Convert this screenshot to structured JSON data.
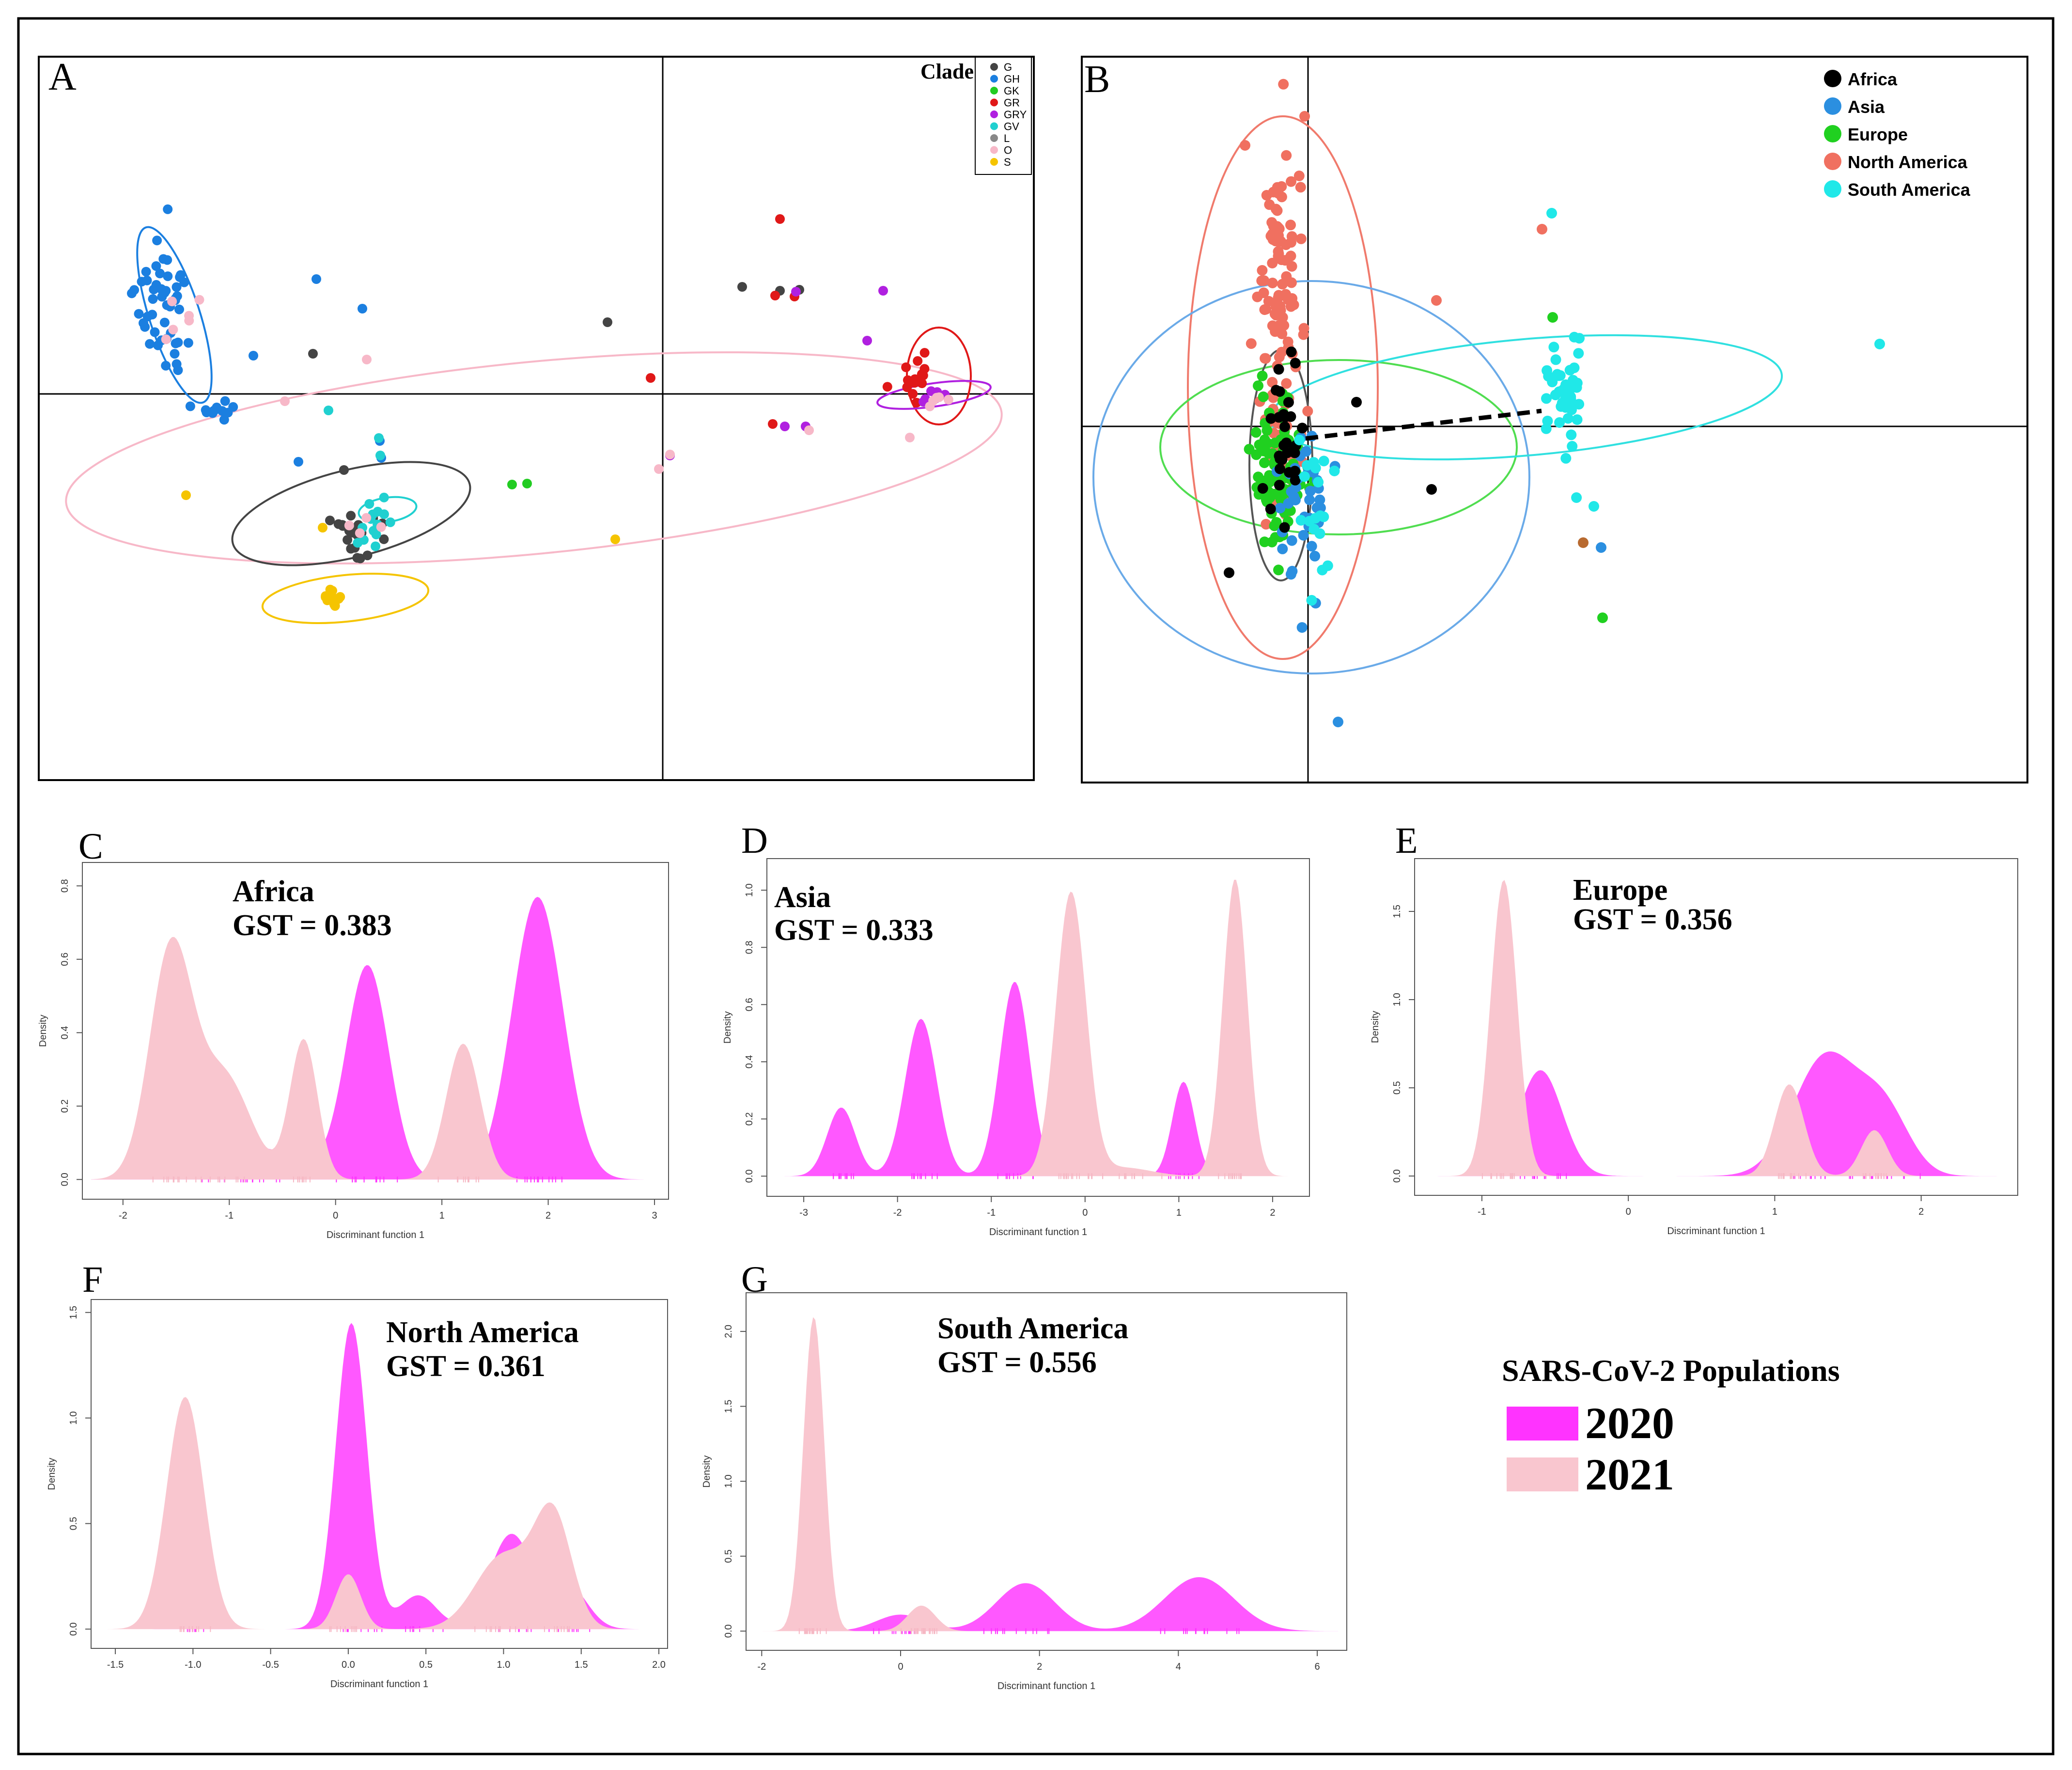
{
  "panels": {
    "A": {
      "letter": "A",
      "legend_title": "Clade",
      "legend": [
        {
          "label": "G",
          "color": "#444444"
        },
        {
          "label": "GH",
          "color": "#1b7fe0"
        },
        {
          "label": "GK",
          "color": "#22cc22"
        },
        {
          "label": "GR",
          "color": "#e01818"
        },
        {
          "label": "GRY",
          "color": "#b020e0"
        },
        {
          "label": "GV",
          "color": "#20d0d0"
        },
        {
          "label": "L",
          "color": "#888888"
        },
        {
          "label": "O",
          "color": "#f7b8c8"
        },
        {
          "label": "S",
          "color": "#f5c400"
        }
      ]
    },
    "B": {
      "letter": "B",
      "legend": [
        {
          "label": "Africa",
          "color": "#000000"
        },
        {
          "label": "Asia",
          "color": "#2b8fe0"
        },
        {
          "label": "Europe",
          "color": "#20d020"
        },
        {
          "label": "North America",
          "color": "#f07060"
        },
        {
          "label": "South America",
          "color": "#20e8e8"
        }
      ]
    }
  },
  "legend_main": {
    "title": "SARS-CoV-2 Populations",
    "entries": [
      {
        "label": "2020",
        "color": "#ff33ff"
      },
      {
        "label": "2021",
        "color": "#f9c6cf"
      }
    ]
  },
  "chart_data": [
    {
      "id": "C",
      "type": "area",
      "region": "Africa",
      "gst_label": "GST = 0.383",
      "gst_value": 0.383,
      "xlabel": "Discriminant function 1",
      "ylabel": "Density",
      "xlim": [
        -2.3,
        3.05
      ],
      "ylim": [
        -0.03,
        0.84
      ],
      "xticks": [
        -2,
        -1,
        0,
        1,
        2,
        3
      ],
      "xtick_labels": [
        "-2",
        "-1",
        "0",
        "1",
        "2",
        "3"
      ],
      "yticks": [
        0,
        0.2,
        0.4,
        0.6,
        0.8
      ],
      "ytick_labels": [
        "0.0",
        "0.2",
        "0.4",
        "0.6",
        "0.8"
      ],
      "series": [
        {
          "name": "2021",
          "color": "#f9c6cf",
          "peaks": [
            [
              -1.55,
              0.62,
              0.2
            ],
            [
              -1.05,
              0.28,
              0.25
            ],
            [
              -0.3,
              0.38,
              0.13
            ],
            [
              1.2,
              0.37,
              0.16
            ]
          ]
        },
        {
          "name": "2020",
          "color": "#ff33ff",
          "peaks": [
            [
              -0.8,
              0.09,
              0.45
            ],
            [
              0.3,
              0.58,
              0.2
            ],
            [
              1.9,
              0.77,
              0.24
            ]
          ]
        }
      ]
    },
    {
      "id": "D",
      "type": "area",
      "region": "Asia",
      "gst_label": "GST = 0.333",
      "gst_value": 0.333,
      "xlabel": "Discriminant function 1",
      "ylabel": "Density",
      "xlim": [
        -3.3,
        2.3
      ],
      "ylim": [
        -0.04,
        1.08
      ],
      "xticks": [
        -3,
        -2,
        -1,
        0,
        1,
        2
      ],
      "xtick_labels": [
        "-3",
        "-2",
        "-1",
        "0",
        "1",
        "2"
      ],
      "yticks": [
        0,
        0.2,
        0.4,
        0.6,
        0.8,
        1.0
      ],
      "ytick_labels": [
        "0.0",
        "0.2",
        "0.4",
        "0.6",
        "0.8",
        "1.0"
      ],
      "series": [
        {
          "name": "2021",
          "color": "#f9c6cf",
          "peaks": [
            [
              -0.15,
              0.99,
              0.16
            ],
            [
              1.6,
              1.04,
              0.13
            ],
            [
              0.4,
              0.03,
              0.3
            ]
          ]
        },
        {
          "name": "2020",
          "color": "#ff33ff",
          "peaks": [
            [
              -2.6,
              0.24,
              0.15
            ],
            [
              -1.75,
              0.55,
              0.17
            ],
            [
              -0.75,
              0.68,
              0.16
            ],
            [
              1.05,
              0.33,
              0.12
            ]
          ]
        }
      ]
    },
    {
      "id": "E",
      "type": "area",
      "region": "Europe",
      "gst_label": "GST = 0.356",
      "gst_value": 0.356,
      "xlabel": "Discriminant function 1",
      "ylabel": "Density",
      "xlim": [
        -1.4,
        2.6
      ],
      "ylim": [
        -0.06,
        1.75
      ],
      "xticks": [
        -1,
        0,
        1,
        2
      ],
      "xtick_labels": [
        "-1",
        "0",
        "1",
        "2"
      ],
      "yticks": [
        0,
        0.5,
        1.0,
        1.5
      ],
      "ytick_labels": [
        "0.0",
        "0.5",
        "1.0",
        "1.5"
      ],
      "series": [
        {
          "name": "2021",
          "color": "#f9c6cf",
          "peaks": [
            [
              -0.85,
              1.68,
              0.09
            ],
            [
              1.1,
              0.52,
              0.1
            ],
            [
              1.68,
              0.26,
              0.09
            ]
          ]
        },
        {
          "name": "2020",
          "color": "#ff33ff",
          "peaks": [
            [
              -0.6,
              0.6,
              0.15
            ],
            [
              1.35,
              0.68,
              0.22
            ],
            [
              1.75,
              0.35,
              0.17
            ]
          ]
        }
      ]
    },
    {
      "id": "F",
      "type": "area",
      "region": "North America",
      "gst_label": "GST = 0.361",
      "gst_value": 0.361,
      "xlabel": "Discriminant function 1",
      "ylabel": "Density",
      "xlim": [
        -1.6,
        2.0
      ],
      "ylim": [
        -0.05,
        1.52
      ],
      "xticks": [
        -1.5,
        -1.0,
        -0.5,
        0.0,
        0.5,
        1.0,
        1.5,
        2.0
      ],
      "xtick_labels": [
        "-1.5",
        "-1.0",
        "-0.5",
        "0.0",
        "0.5",
        "1.0",
        "1.5",
        "2.0"
      ],
      "yticks": [
        0,
        0.5,
        1.0,
        1.5
      ],
      "ytick_labels": [
        "0.0",
        "0.5",
        "1.0",
        "1.5"
      ],
      "series": [
        {
          "name": "2021",
          "color": "#f9c6cf",
          "peaks": [
            [
              -1.05,
              1.1,
              0.12
            ],
            [
              0.0,
              0.26,
              0.08
            ],
            [
              1.0,
              0.35,
              0.18
            ],
            [
              1.32,
              0.52,
              0.12
            ]
          ]
        },
        {
          "name": "2020",
          "color": "#ff33ff",
          "peaks": [
            [
              -1.0,
              0.2,
              0.07
            ],
            [
              0.02,
              1.45,
              0.1
            ],
            [
              0.45,
              0.16,
              0.12
            ],
            [
              1.05,
              0.45,
              0.14
            ],
            [
              1.42,
              0.2,
              0.12
            ]
          ]
        }
      ]
    },
    {
      "id": "G",
      "type": "area",
      "region": "South America",
      "gst_label": "GST = 0.556",
      "gst_value": 0.556,
      "xlabel": "Discriminant function 1",
      "ylabel": "Density",
      "xlim": [
        -2.1,
        6.3
      ],
      "ylim": [
        -0.07,
        2.2
      ],
      "xticks": [
        -2,
        0,
        2,
        4,
        6
      ],
      "xtick_labels": [
        "-2",
        "0",
        "2",
        "4",
        "6"
      ],
      "yticks": [
        0,
        0.5,
        1.0,
        1.5,
        2.0
      ],
      "ytick_labels": [
        "0.0",
        "0.5",
        "1.0",
        "1.5",
        "2.0"
      ],
      "series": [
        {
          "name": "2021",
          "color": "#f9c6cf",
          "peaks": [
            [
              -1.25,
              2.1,
              0.15
            ],
            [
              0.3,
              0.17,
              0.2
            ]
          ]
        },
        {
          "name": "2020",
          "color": "#ff33ff",
          "peaks": [
            [
              0.0,
              0.11,
              0.35
            ],
            [
              1.8,
              0.32,
              0.42
            ],
            [
              4.3,
              0.36,
              0.5
            ]
          ]
        }
      ]
    }
  ]
}
